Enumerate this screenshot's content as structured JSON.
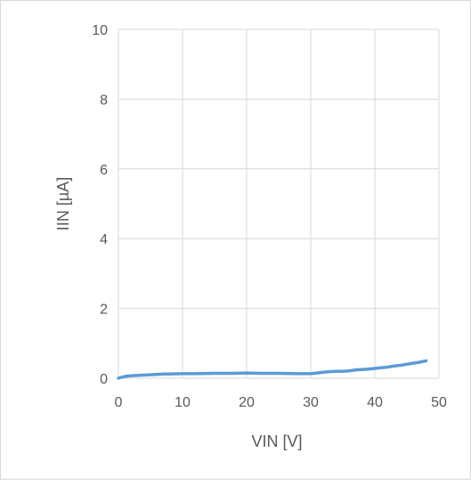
{
  "chart_data": {
    "type": "line",
    "title": "",
    "xlabel": "VIN [V]",
    "ylabel": "IIN [µA]",
    "xlim": [
      0,
      50
    ],
    "ylim": [
      0,
      10
    ],
    "xticks": [
      "0",
      "10",
      "20",
      "30",
      "40",
      "50"
    ],
    "yticks": [
      "0",
      "2",
      "4",
      "6",
      "8",
      "10"
    ],
    "grid": true,
    "legend": "none",
    "series": [
      {
        "color": "#5b9bd5",
        "x": [
          0,
          1,
          2,
          3,
          4,
          5,
          6,
          7,
          8,
          10,
          12,
          15,
          18,
          20,
          22,
          25,
          28,
          30,
          31,
          32,
          33,
          34,
          35,
          36,
          37,
          38,
          39,
          40,
          41,
          42,
          43,
          44,
          45,
          46,
          47,
          48
        ],
        "y": [
          0.0,
          0.05,
          0.07,
          0.08,
          0.09,
          0.1,
          0.11,
          0.12,
          0.12,
          0.13,
          0.13,
          0.14,
          0.14,
          0.15,
          0.14,
          0.14,
          0.13,
          0.13,
          0.15,
          0.17,
          0.19,
          0.2,
          0.2,
          0.21,
          0.24,
          0.25,
          0.26,
          0.28,
          0.3,
          0.32,
          0.35,
          0.37,
          0.4,
          0.43,
          0.46,
          0.5
        ]
      }
    ]
  }
}
